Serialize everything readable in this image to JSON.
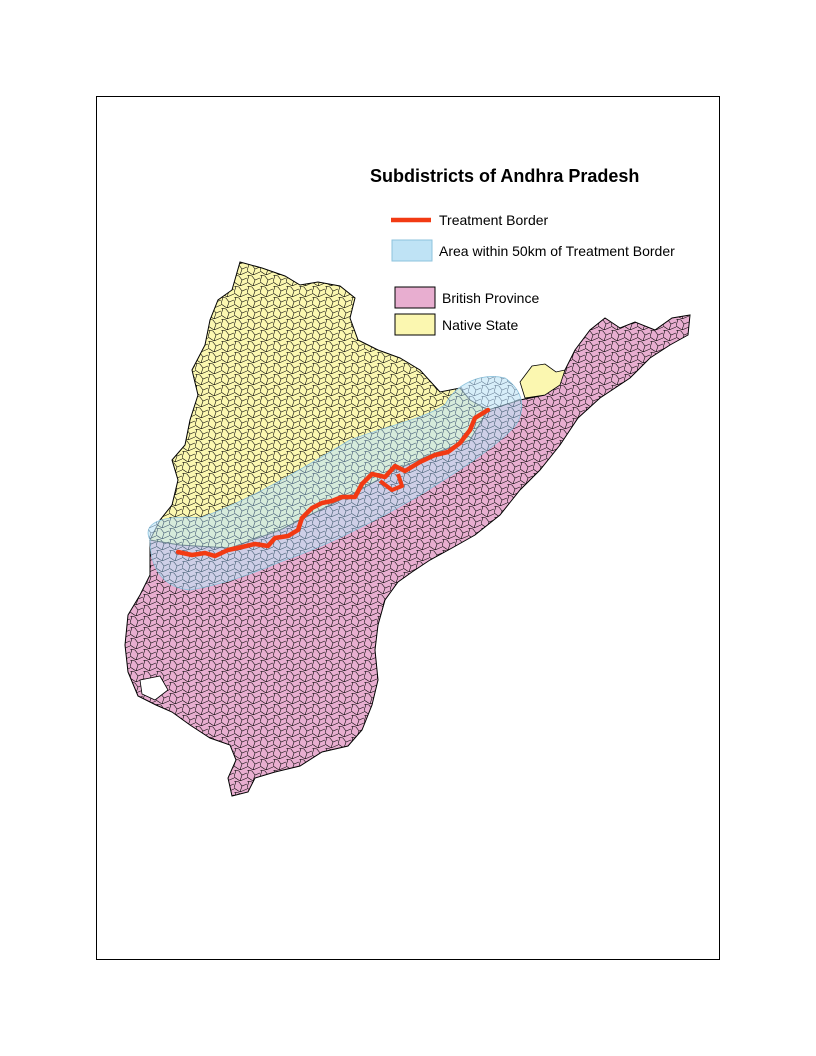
{
  "map": {
    "title": "Subdistricts of Andhra Pradesh",
    "colors": {
      "british_province": "#e8aed0",
      "native_state": "#fbf7b0",
      "buffer_area": "#bfe3f5",
      "treatment_border": "#f23a13",
      "subdistrict_lines": "#000000"
    }
  },
  "legend": {
    "treatment_border": "Treatment Border",
    "buffer_area": "Area within 50km of Treatment Border",
    "british_province": "British Province",
    "native_state": "Native State"
  }
}
